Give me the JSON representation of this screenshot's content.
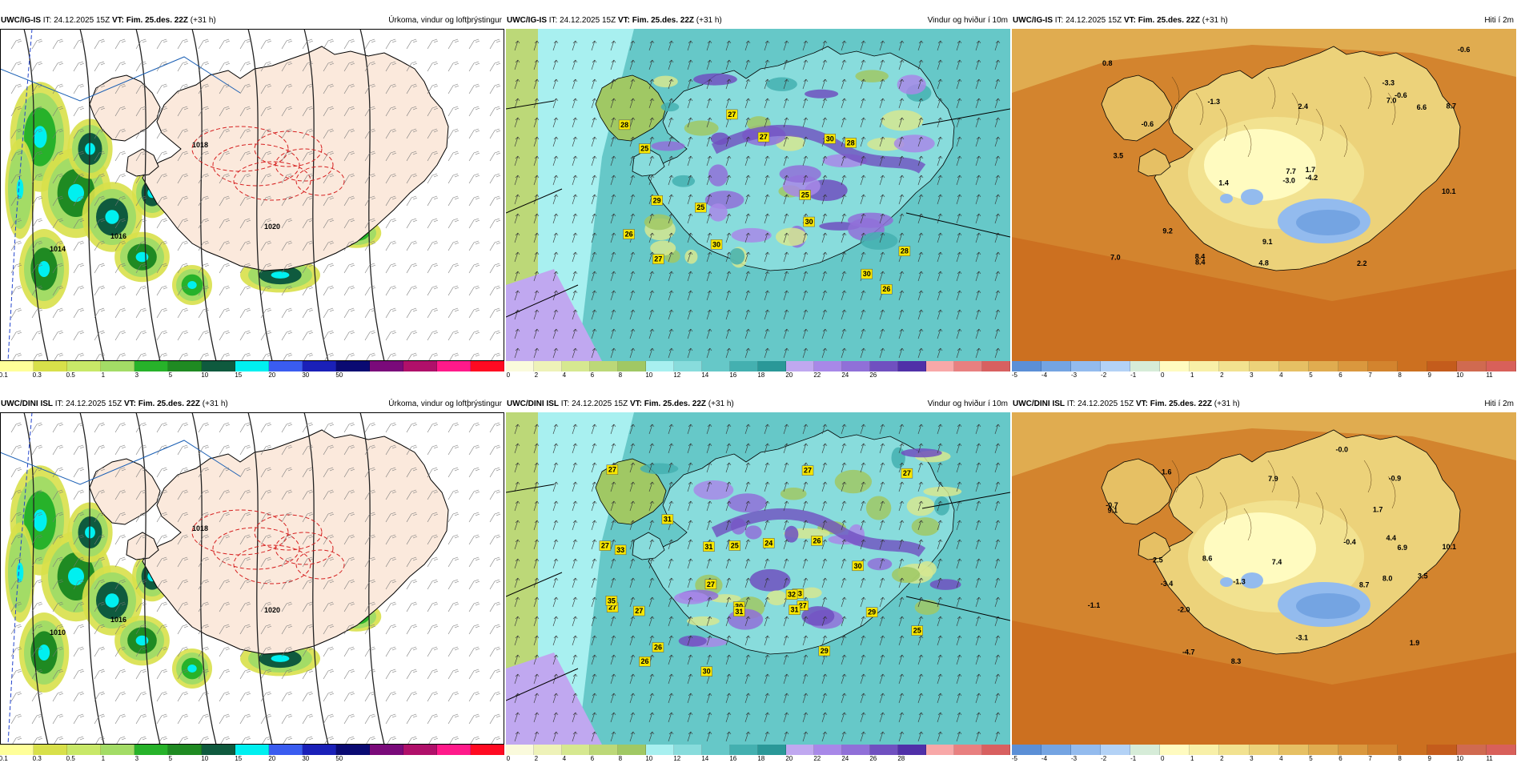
{
  "panels": [
    {
      "id": "top-precip",
      "model": "UWC/IG-IS",
      "it_label": "IT:",
      "it_value": "24.12.2025 15Z",
      "vt_label": "VT:",
      "vt_value": "Fim. 25.des. 22Z",
      "lead": "(+31 h)",
      "title": "Úrkoma, vindur og loftþrýstingur",
      "type": "precip",
      "colors": [
        "#ffff99",
        "#d8e04a",
        "#c8e868",
        "#a3dc66",
        "#27b22a",
        "#1f8a22",
        "#0f5a3e",
        "#00f0f0",
        "#3a5cf0",
        "#1a20b8",
        "#0a0a72",
        "#7a0a7a",
        "#b0106a",
        "#ff1a8a",
        "#ff0a22"
      ],
      "ticks": [
        "0.1",
        "0.3",
        "0.5",
        "1",
        "3",
        "5",
        "10",
        "15",
        "20",
        "30",
        "50"
      ],
      "map_labels": [
        "1014",
        "1016",
        "1018",
        "1020"
      ]
    },
    {
      "id": "top-wind",
      "model": "UWC/IG-IS",
      "it_label": "IT:",
      "it_value": "24.12.2025 15Z",
      "vt_label": "VT:",
      "vt_value": "Fim. 25.des. 22Z",
      "lead": "(+31 h)",
      "title": "Vindur og hviður í 10m",
      "type": "wind",
      "colors": [
        "#fafadc",
        "#eef2b8",
        "#d6e890",
        "#bcd878",
        "#a0c864",
        "#a8f0f0",
        "#88dcdc",
        "#66c8c8",
        "#44b0b0",
        "#2a9898",
        "#c0a8f0",
        "#a888e8",
        "#9070d8",
        "#7050c0",
        "#5030a8",
        "#f8a8a8",
        "#e88080",
        "#d86060"
      ],
      "ticks": [
        "0",
        "2",
        "4",
        "6",
        "8",
        "10",
        "12",
        "14",
        "16",
        "18",
        "20",
        "22",
        "24",
        "26"
      ],
      "gusts": [
        "26",
        "29",
        "30",
        "28",
        "28",
        "25",
        "27",
        "25",
        "28",
        "27",
        "30",
        "30",
        "30",
        "27",
        "25",
        "26"
      ]
    },
    {
      "id": "top-temp",
      "model": "UWC/IG-IS",
      "it_label": "IT:",
      "it_value": "24.12.2025 15Z",
      "vt_label": "VT:",
      "vt_value": "Fim. 25.des. 22Z",
      "lead": "(+31 h)",
      "title": "Hiti í 2m",
      "type": "temp",
      "colors": [
        "#5b8fd6",
        "#74a4e2",
        "#93bbee",
        "#b3d2f6",
        "#d6ecd8",
        "#fffbc0",
        "#f8f0a8",
        "#f2e290",
        "#ecd27a",
        "#e6c064",
        "#e0ac50",
        "#da983e",
        "#d3842e",
        "#cc7020",
        "#c45c1c",
        "#d06a50",
        "#d8605a"
      ],
      "ticks": [
        "-5",
        "-4",
        "-3",
        "-2",
        "-1",
        "0",
        "1",
        "2",
        "3",
        "4",
        "5",
        "6",
        "7",
        "8",
        "9",
        "10",
        "11"
      ],
      "temps": [
        "7.0",
        "-0.6",
        "10.1",
        "4.8",
        "7.0",
        "9.2",
        "8.7",
        "-0.6",
        "9.1",
        "6.6",
        "2.2",
        "0.8",
        "2.4",
        "-1.3",
        "8.4",
        "1.4",
        "-0.6",
        "-3.0",
        "-4.2",
        "7.7",
        "3.5",
        "1.7",
        "-3.3",
        "8.4"
      ]
    },
    {
      "id": "bottom-precip",
      "model": "UWC/DINI ISL",
      "it_label": "IT:",
      "it_value": "24.12.2025 15Z",
      "vt_label": "VT:",
      "vt_value": "Fim. 25.des. 22Z",
      "lead": "(+31 h)",
      "title": "Úrkoma, vindur og loftþrýstingur",
      "type": "precip",
      "colors": [
        "#ffff99",
        "#d8e04a",
        "#c8e868",
        "#a3dc66",
        "#27b22a",
        "#1f8a22",
        "#0f5a3e",
        "#00f0f0",
        "#3a5cf0",
        "#1a20b8",
        "#0a0a72",
        "#7a0a7a",
        "#b0106a",
        "#ff1a8a",
        "#ff0a22"
      ],
      "ticks": [
        "0.1",
        "0.3",
        "0.5",
        "1",
        "3",
        "5",
        "10",
        "15",
        "20",
        "30",
        "50"
      ],
      "map_labels": [
        "1010",
        "1016",
        "1018",
        "1020"
      ]
    },
    {
      "id": "bottom-wind",
      "model": "UWC/DINI ISL",
      "it_label": "IT:",
      "it_value": "24.12.2025 15Z",
      "vt_label": "VT:",
      "vt_value": "Fim. 25.des. 22Z",
      "lead": "(+31 h)",
      "title": "Vindur og hviður í 10m",
      "type": "wind",
      "colors": [
        "#fafadc",
        "#eef2b8",
        "#d6e890",
        "#bcd878",
        "#a0c864",
        "#a8f0f0",
        "#88dcdc",
        "#66c8c8",
        "#44b0b0",
        "#2a9898",
        "#c0a8f0",
        "#a888e8",
        "#9070d8",
        "#7050c0",
        "#5030a8",
        "#f8a8a8",
        "#e88080",
        "#d86060"
      ],
      "ticks": [
        "0",
        "2",
        "4",
        "6",
        "8",
        "10",
        "12",
        "14",
        "16",
        "18",
        "20",
        "22",
        "24",
        "26",
        "28"
      ],
      "gusts": [
        "27",
        "33",
        "27",
        "31",
        "27",
        "25",
        "30",
        "33",
        "31",
        "24",
        "26",
        "27",
        "27",
        "30",
        "29",
        "25",
        "26",
        "27",
        "30",
        "31",
        "35",
        "32",
        "31",
        "26",
        "27",
        "27",
        "29"
      ]
    },
    {
      "id": "bottom-temp",
      "model": "UWC/DINI ISL",
      "it_label": "IT:",
      "it_value": "24.12.2025 15Z",
      "vt_label": "VT:",
      "vt_value": "Fim. 25.des. 22Z",
      "lead": "(+31 h)",
      "title": "Hiti í 2m",
      "type": "temp",
      "colors": [
        "#5b8fd6",
        "#74a4e2",
        "#93bbee",
        "#b3d2f6",
        "#d6ecd8",
        "#fffbc0",
        "#f8f0a8",
        "#f2e290",
        "#ecd27a",
        "#e6c064",
        "#e0ac50",
        "#da983e",
        "#d3842e",
        "#cc7020",
        "#c45c1c",
        "#d06a50",
        "#d8605a"
      ],
      "ticks": [
        "-5",
        "-4",
        "-3",
        "-2",
        "-1",
        "0",
        "1",
        "2",
        "3",
        "4",
        "5",
        "6",
        "7",
        "8",
        "9",
        "10",
        "11"
      ],
      "temps": [
        "8.0",
        "-0.9",
        "10.1",
        "-0.0",
        "7.4",
        "7.9",
        "8.6",
        "9.1",
        "-0.4",
        "-0.7",
        "1.9",
        "3.5",
        "-2.0",
        "2.5",
        "8.3",
        "1.6",
        "-1.3",
        "-3.1",
        "-4.7",
        "6.9",
        "8.7",
        "1.7",
        "4.4",
        "-3.4",
        "-1.1"
      ]
    }
  ]
}
